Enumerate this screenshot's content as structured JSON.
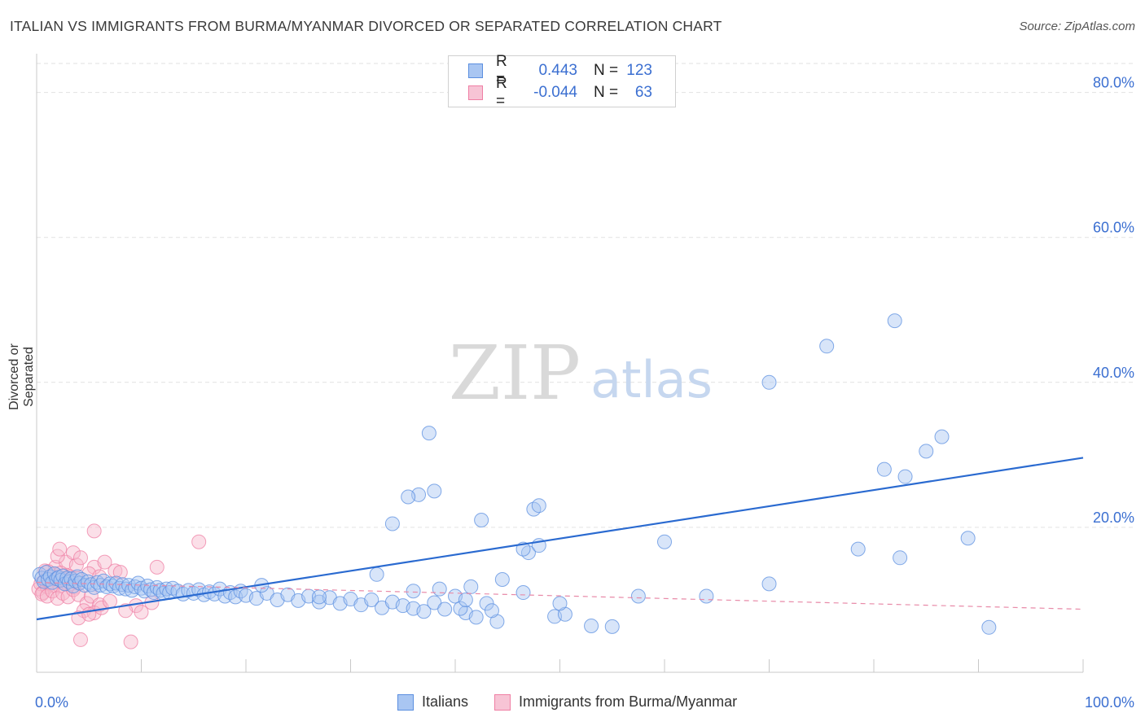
{
  "title": "ITALIAN VS IMMIGRANTS FROM BURMA/MYANMAR DIVORCED OR SEPARATED CORRELATION CHART",
  "source": "Source: ZipAtlas.com",
  "watermark": {
    "zip": "ZIP",
    "atlas": "atlas"
  },
  "legend_top": {
    "rows": [
      {
        "r_label": "R =",
        "r_value": "0.443",
        "n_label": "N =",
        "n_value": "123"
      },
      {
        "r_label": "R =",
        "r_value": "-0.044",
        "n_label": "N =",
        "n_value": "63"
      }
    ]
  },
  "legend_bottom": {
    "series_a": "Italians",
    "series_b": "Immigrants from Burma/Myanmar"
  },
  "chart_data": {
    "type": "scatter",
    "title": "ITALIAN VS IMMIGRANTS FROM BURMA/MYANMAR DIVORCED OR SEPARATED CORRELATION CHART",
    "xlabel": "",
    "ylabel": "Divorced or Separated",
    "xlim": [
      0,
      100
    ],
    "ylim": [
      0,
      84
    ],
    "x_tick_labels": [
      "0.0%",
      "100.0%"
    ],
    "y_ticks": [
      20,
      40,
      60,
      80
    ],
    "y_tick_labels": [
      "20.0%",
      "40.0%",
      "60.0%",
      "80.0%"
    ],
    "grid": true,
    "legend_position": "top-center",
    "colors": {
      "italians": "#5b8fe0",
      "italians_fill": "#a9c6f2",
      "burma": "#ef7fa4",
      "burma_fill": "#f7b8cc",
      "trend_blue": "#2a6ad0",
      "trend_pink": "#e88aa8"
    },
    "series": [
      {
        "name": "Italians",
        "trend": {
          "x": [
            0,
            100
          ],
          "y": [
            7.3,
            29.6
          ]
        },
        "points": [
          [
            0.3,
            13.5
          ],
          [
            0.5,
            13.0
          ],
          [
            0.7,
            12.5
          ],
          [
            0.9,
            13.8
          ],
          [
            1.1,
            12.8
          ],
          [
            1.3,
            13.2
          ],
          [
            1.5,
            12.4
          ],
          [
            1.7,
            13.6
          ],
          [
            1.9,
            12.9
          ],
          [
            2.1,
            13.1
          ],
          [
            2.3,
            12.7
          ],
          [
            2.5,
            13.3
          ],
          [
            2.7,
            12.2
          ],
          [
            2.9,
            13.0
          ],
          [
            3.1,
            12.5
          ],
          [
            3.3,
            12.9
          ],
          [
            3.5,
            11.9
          ],
          [
            3.7,
            12.6
          ],
          [
            3.9,
            13.2
          ],
          [
            4.1,
            12.3
          ],
          [
            4.3,
            12.8
          ],
          [
            4.6,
            12.0
          ],
          [
            4.9,
            12.5
          ],
          [
            5.2,
            12.1
          ],
          [
            5.5,
            11.7
          ],
          [
            5.8,
            12.4
          ],
          [
            6.1,
            12.0
          ],
          [
            6.4,
            12.6
          ],
          [
            6.7,
            11.8
          ],
          [
            7.0,
            12.2
          ],
          [
            7.3,
            11.9
          ],
          [
            7.6,
            12.3
          ],
          [
            7.9,
            11.6
          ],
          [
            8.2,
            12.1
          ],
          [
            8.5,
            11.5
          ],
          [
            8.8,
            12.0
          ],
          [
            9.1,
            11.3
          ],
          [
            9.4,
            11.8
          ],
          [
            9.7,
            12.3
          ],
          [
            10.0,
            11.6
          ],
          [
            10.3,
            11.2
          ],
          [
            10.6,
            11.9
          ],
          [
            10.9,
            11.4
          ],
          [
            11.2,
            11.0
          ],
          [
            11.5,
            11.7
          ],
          [
            11.8,
            11.3
          ],
          [
            12.1,
            10.9
          ],
          [
            12.4,
            11.5
          ],
          [
            12.7,
            11.0
          ],
          [
            13.0,
            11.6
          ],
          [
            13.5,
            11.2
          ],
          [
            14.0,
            10.8
          ],
          [
            14.5,
            11.3
          ],
          [
            15.0,
            10.9
          ],
          [
            15.5,
            11.4
          ],
          [
            16.0,
            10.7
          ],
          [
            16.5,
            11.1
          ],
          [
            17.0,
            10.8
          ],
          [
            17.5,
            11.5
          ],
          [
            18.0,
            10.5
          ],
          [
            18.5,
            11.0
          ],
          [
            19.0,
            10.4
          ],
          [
            19.5,
            11.2
          ],
          [
            20.0,
            10.6
          ],
          [
            21.0,
            10.2
          ],
          [
            22.0,
            10.9
          ],
          [
            23.0,
            10.0
          ],
          [
            24.0,
            10.7
          ],
          [
            25.0,
            9.9
          ],
          [
            26.0,
            10.5
          ],
          [
            27.0,
            9.7
          ],
          [
            28.0,
            10.3
          ],
          [
            29.0,
            9.5
          ],
          [
            30.0,
            10.1
          ],
          [
            31.0,
            9.3
          ],
          [
            32.0,
            10.0
          ],
          [
            33.0,
            8.9
          ],
          [
            34.0,
            9.7
          ],
          [
            35.0,
            9.2
          ],
          [
            36.0,
            8.8
          ],
          [
            37.0,
            8.4
          ],
          [
            38.0,
            9.6
          ],
          [
            38.5,
            11.5
          ],
          [
            39.0,
            8.7
          ],
          [
            40.0,
            10.5
          ],
          [
            41.0,
            8.2
          ],
          [
            42.0,
            7.6
          ],
          [
            43.0,
            9.5
          ],
          [
            44.0,
            7.0
          ],
          [
            43.5,
            8.5
          ],
          [
            40.5,
            8.8
          ],
          [
            46.5,
            11.0
          ],
          [
            41.5,
            11.8
          ],
          [
            49.5,
            7.7
          ],
          [
            41.0,
            10.0
          ],
          [
            36.0,
            11.2
          ],
          [
            32.5,
            13.5
          ],
          [
            27.0,
            10.4
          ],
          [
            21.5,
            12.0
          ],
          [
            44.5,
            12.8
          ],
          [
            47.0,
            16.5
          ],
          [
            46.5,
            17.0
          ],
          [
            48.0,
            17.5
          ],
          [
            42.5,
            21.0
          ],
          [
            36.5,
            24.5
          ],
          [
            35.5,
            24.2
          ],
          [
            34.0,
            20.5
          ],
          [
            38.0,
            25.0
          ],
          [
            37.5,
            33.0
          ],
          [
            47.5,
            22.5
          ],
          [
            50.5,
            8.0
          ],
          [
            48.0,
            23.0
          ],
          [
            50.0,
            9.5
          ],
          [
            53.0,
            6.4
          ],
          [
            55.0,
            6.3
          ],
          [
            57.5,
            10.5
          ],
          [
            60.0,
            18.0
          ],
          [
            64.0,
            10.5
          ],
          [
            70.0,
            12.2
          ],
          [
            82.5,
            15.8
          ],
          [
            78.5,
            17.0
          ],
          [
            81.0,
            28.0
          ],
          [
            83.0,
            27.0
          ],
          [
            85.0,
            30.5
          ],
          [
            86.5,
            32.5
          ],
          [
            89.0,
            18.5
          ],
          [
            91.0,
            6.2
          ],
          [
            70.0,
            40.0
          ],
          [
            75.5,
            45.0
          ],
          [
            82.0,
            48.5
          ]
        ]
      },
      {
        "name": "Immigrants from Burma/Myanmar",
        "trend": {
          "x": [
            0,
            100
          ],
          "y": [
            12.4,
            8.7
          ]
        },
        "points": [
          [
            0.2,
            11.5
          ],
          [
            0.4,
            12.2
          ],
          [
            0.6,
            11.0
          ],
          [
            0.8,
            12.8
          ],
          [
            1.0,
            11.8
          ],
          [
            1.2,
            12.5
          ],
          [
            1.4,
            13.1
          ],
          [
            1.6,
            12.0
          ],
          [
            1.8,
            13.5
          ],
          [
            2.0,
            12.7
          ],
          [
            2.2,
            11.9
          ],
          [
            2.4,
            13.0
          ],
          [
            2.6,
            12.4
          ],
          [
            2.8,
            13.4
          ],
          [
            3.0,
            12.1
          ],
          [
            3.2,
            13.2
          ],
          [
            3.4,
            12.6
          ],
          [
            3.6,
            11.7
          ],
          [
            3.8,
            13.0
          ],
          [
            4.0,
            12.3
          ],
          [
            0.5,
            10.8
          ],
          [
            1.0,
            10.5
          ],
          [
            1.5,
            11.2
          ],
          [
            2.0,
            10.2
          ],
          [
            2.5,
            10.9
          ],
          [
            3.0,
            10.4
          ],
          [
            3.5,
            11.4
          ],
          [
            4.0,
            10.7
          ],
          [
            0.8,
            14.0
          ],
          [
            1.8,
            14.5
          ],
          [
            2.8,
            15.2
          ],
          [
            3.8,
            14.8
          ],
          [
            2.0,
            16.0
          ],
          [
            3.5,
            16.5
          ],
          [
            2.2,
            17.0
          ],
          [
            4.2,
            15.8
          ],
          [
            5.5,
            14.5
          ],
          [
            6.5,
            15.2
          ],
          [
            5.0,
            13.6
          ],
          [
            6.0,
            13.2
          ],
          [
            7.5,
            14.0
          ],
          [
            8.0,
            13.8
          ],
          [
            4.8,
            9.5
          ],
          [
            5.2,
            10.5
          ],
          [
            6.0,
            9.3
          ],
          [
            4.5,
            8.5
          ],
          [
            5.5,
            8.2
          ],
          [
            6.2,
            8.9
          ],
          [
            4.0,
            7.5
          ],
          [
            5.0,
            8.0
          ],
          [
            7.0,
            9.8
          ],
          [
            9.5,
            9.2
          ],
          [
            10.0,
            8.3
          ],
          [
            11.0,
            9.6
          ],
          [
            11.5,
            14.5
          ],
          [
            8.5,
            8.5
          ],
          [
            4.2,
            4.5
          ],
          [
            9.0,
            4.2
          ],
          [
            5.5,
            19.5
          ],
          [
            15.5,
            18.0
          ],
          [
            3.0,
            12.9
          ],
          [
            2.3,
            13.7
          ],
          [
            1.1,
            13.9
          ]
        ]
      }
    ]
  }
}
